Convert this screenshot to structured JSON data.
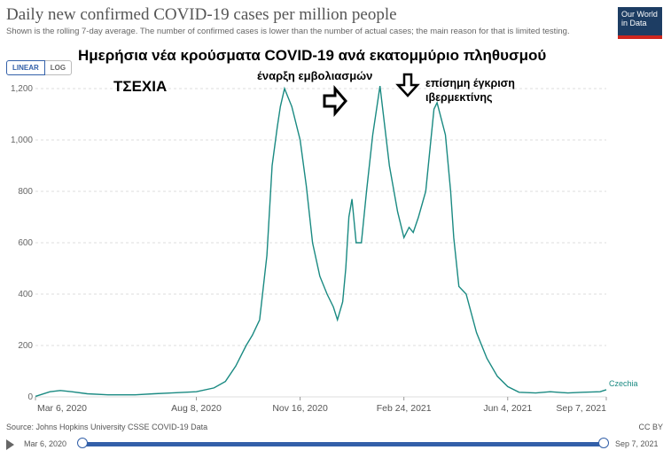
{
  "header": {
    "title": "Daily new confirmed COVID-19 cases per million people",
    "subtitle": "Shown is the rolling 7-day average. The number of confirmed cases is lower than the number of actual cases; the main reason for that is limited testing.",
    "logo_line1": "Our World",
    "logo_line2": "in Data"
  },
  "controls": {
    "linear_label": "LINEAR",
    "log_label": "LOG"
  },
  "overlay": {
    "main_title": "Ημερήσια νέα κρούσματα COVID-19 ανά εκατομμύριο πληθυσμού",
    "country": "ΤΣΕΧΙΑ",
    "vaccination_note": "έναρξη εμβολιασμών",
    "ivermectin_note_line1": "επίσημη έγκριση",
    "ivermectin_note_line2": "ιβερμεκτίνης"
  },
  "footer": {
    "source": "Source: Johns Hopkins University CSSE COVID-19 Data",
    "license": "CC BY",
    "timeline_start": "Mar 6, 2020",
    "timeline_end": "Sep 7, 2021"
  },
  "colors": {
    "line": "#1a8a82",
    "accent": "#3360a9",
    "grid": "#dddddd"
  },
  "chart_data": {
    "type": "line",
    "ylim": [
      0,
      1200
    ],
    "yticks": [
      "0",
      "200",
      "400",
      "600",
      "800",
      "1,000",
      "1,200"
    ],
    "xticks": [
      "Mar 6, 2020",
      "Aug 8, 2020",
      "Nov 16, 2020",
      "Feb 24, 2021",
      "Jun 4, 2021",
      "Sep 7, 2021"
    ],
    "series": [
      {
        "name": "Czechia",
        "x": [
          "2020-03-06",
          "2020-03-20",
          "2020-03-30",
          "2020-04-10",
          "2020-04-25",
          "2020-05-15",
          "2020-06-10",
          "2020-06-28",
          "2020-07-15",
          "2020-08-08",
          "2020-08-25",
          "2020-09-05",
          "2020-09-15",
          "2020-09-25",
          "2020-10-01",
          "2020-10-08",
          "2020-10-15",
          "2020-10-20",
          "2020-10-25",
          "2020-10-28",
          "2020-11-01",
          "2020-11-08",
          "2020-11-16",
          "2020-11-22",
          "2020-11-28",
          "2020-12-05",
          "2020-12-12",
          "2020-12-18",
          "2020-12-22",
          "2020-12-27",
          "2020-12-30",
          "2021-01-02",
          "2021-01-05",
          "2021-01-09",
          "2021-01-14",
          "2021-01-19",
          "2021-01-25",
          "2021-02-01",
          "2021-02-10",
          "2021-02-18",
          "2021-02-24",
          "2021-03-01",
          "2021-03-05",
          "2021-03-10",
          "2021-03-17",
          "2021-03-22",
          "2021-03-25",
          "2021-03-28",
          "2021-04-05",
          "2021-04-10",
          "2021-04-13",
          "2021-04-18",
          "2021-04-25",
          "2021-05-05",
          "2021-05-15",
          "2021-05-25",
          "2021-06-04",
          "2021-06-15",
          "2021-07-01",
          "2021-07-15",
          "2021-08-01",
          "2021-08-15",
          "2021-09-01",
          "2021-09-07"
        ],
        "values": [
          2,
          20,
          25,
          20,
          12,
          8,
          8,
          12,
          15,
          20,
          35,
          60,
          120,
          200,
          240,
          300,
          550,
          900,
          1050,
          1130,
          1200,
          1130,
          1000,
          820,
          600,
          470,
          400,
          350,
          300,
          370,
          500,
          700,
          770,
          600,
          600,
          800,
          1020,
          1210,
          900,
          720,
          620,
          660,
          640,
          700,
          800,
          1000,
          1120,
          1145,
          1020,
          800,
          620,
          430,
          400,
          250,
          150,
          80,
          40,
          18,
          15,
          20,
          15,
          18,
          20,
          28
        ]
      }
    ]
  }
}
